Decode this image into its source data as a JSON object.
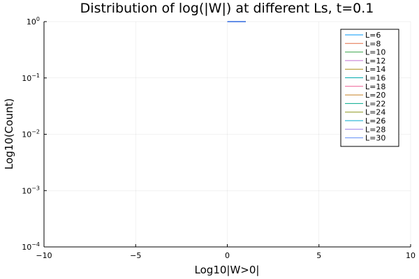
{
  "chart_data": {
    "type": "line",
    "title": "Distribution of log(|W|) at different Ls, t=0.1",
    "xlabel": "Log10|W>0|",
    "ylabel": "Log10(Count)",
    "xlim": [
      -10,
      10
    ],
    "ylim_exponent": [
      -4,
      0
    ],
    "yscale": "log",
    "grid": true,
    "legend_position": "top-right",
    "x_ticks": [
      {
        "value": -10,
        "label": "−10"
      },
      {
        "value": -5,
        "label": "−5"
      },
      {
        "value": 0,
        "label": "0"
      },
      {
        "value": 5,
        "label": "5"
      },
      {
        "value": 10,
        "label": "10"
      }
    ],
    "y_ticks": [
      {
        "exponent": 0,
        "base": "10",
        "exp_label": "0"
      },
      {
        "exponent": -1,
        "base": "10",
        "exp_label": "−1"
      },
      {
        "exponent": -2,
        "base": "10",
        "exp_label": "−2"
      },
      {
        "exponent": -3,
        "base": "10",
        "exp_label": "−3"
      },
      {
        "exponent": -4,
        "base": "10",
        "exp_label": "−4"
      }
    ],
    "series": [
      {
        "name": "L=6",
        "color": "#009af9",
        "x": [
          0,
          1
        ],
        "y": [
          1,
          1
        ]
      },
      {
        "name": "L=8",
        "color": "#e26f46",
        "x": [
          0,
          1
        ],
        "y": [
          1,
          1
        ]
      },
      {
        "name": "L=10",
        "color": "#3da44d",
        "x": [
          0,
          1
        ],
        "y": [
          1,
          1
        ]
      },
      {
        "name": "L=12",
        "color": "#c271d2",
        "x": [
          0,
          1
        ],
        "y": [
          1,
          1
        ]
      },
      {
        "name": "L=14",
        "color": "#ac8d18",
        "x": [
          0,
          1
        ],
        "y": [
          1,
          1
        ]
      },
      {
        "name": "L=16",
        "color": "#00a9ad",
        "x": [
          0,
          1
        ],
        "y": [
          1,
          1
        ]
      },
      {
        "name": "L=18",
        "color": "#ed5e93",
        "x": [
          0,
          1
        ],
        "y": [
          1,
          1
        ]
      },
      {
        "name": "L=20",
        "color": "#c68225",
        "x": [
          0,
          1
        ],
        "y": [
          1,
          1
        ]
      },
      {
        "name": "L=22",
        "color": "#00a98d",
        "x": [
          0,
          1
        ],
        "y": [
          1,
          1
        ]
      },
      {
        "name": "L=24",
        "color": "#8e971d",
        "x": [
          0,
          1
        ],
        "y": [
          1,
          1
        ]
      },
      {
        "name": "L=26",
        "color": "#00a9cd",
        "x": [
          0,
          1
        ],
        "y": [
          1,
          1
        ]
      },
      {
        "name": "L=28",
        "color": "#9b7fe9",
        "x": [
          0,
          1
        ],
        "y": [
          1,
          1
        ]
      },
      {
        "name": "L=30",
        "color": "#618df6",
        "x": [
          0,
          1
        ],
        "y": [
          1,
          1
        ]
      }
    ]
  }
}
